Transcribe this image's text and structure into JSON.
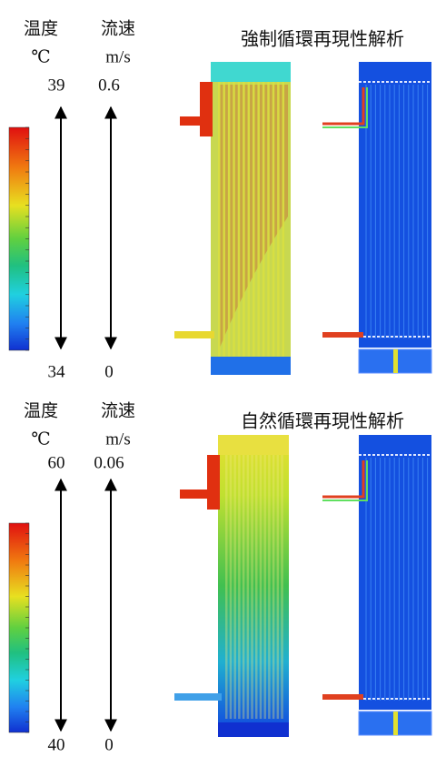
{
  "panels": [
    {
      "title": "強制循環再現性解析",
      "temperature_label": "温度",
      "temperature_unit": "℃",
      "velocity_label": "流速",
      "velocity_unit": "m/s",
      "temperature_max": "39",
      "temperature_min": "34",
      "velocity_max": "0.6",
      "velocity_min": "0"
    },
    {
      "title": "自然循環再現性解析",
      "temperature_label": "温度",
      "temperature_unit": "℃",
      "velocity_label": "流速",
      "velocity_unit": "m/s",
      "temperature_max": "60",
      "temperature_min": "40",
      "velocity_max": "0.06",
      "velocity_min": "0"
    }
  ]
}
